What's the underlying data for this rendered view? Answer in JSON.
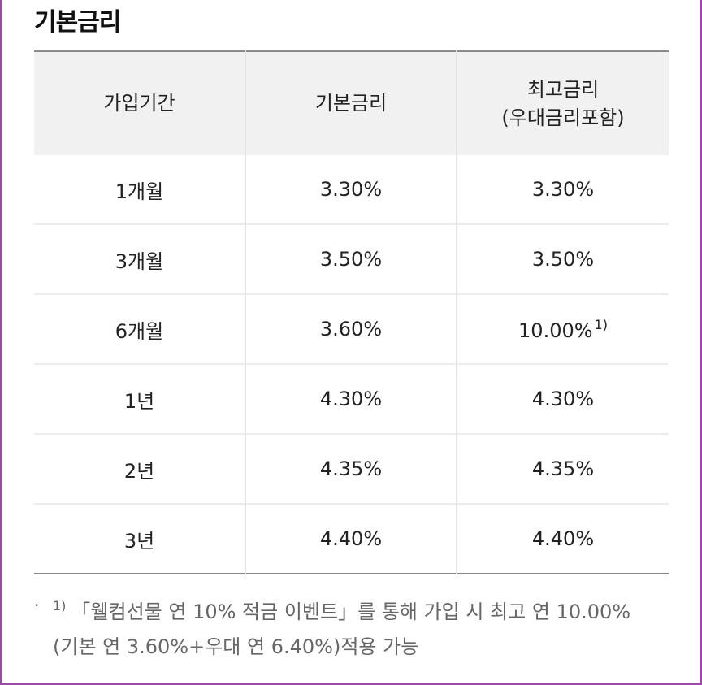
{
  "section_title": "기본금리",
  "table": {
    "headers": {
      "period": "가입기간",
      "base_rate": "기본금리",
      "max_rate_line1": "최고금리",
      "max_rate_line2": "(우대금리포함)"
    },
    "rows": [
      {
        "period": "1개월",
        "base_rate": "3.30%",
        "max_rate": "3.30%",
        "footnote": ""
      },
      {
        "period": "3개월",
        "base_rate": "3.50%",
        "max_rate": "3.50%",
        "footnote": ""
      },
      {
        "period": "6개월",
        "base_rate": "3.60%",
        "max_rate": "10.00%",
        "footnote": "1)"
      },
      {
        "period": "1년",
        "base_rate": "4.30%",
        "max_rate": "4.30%",
        "footnote": ""
      },
      {
        "period": "2년",
        "base_rate": "4.35%",
        "max_rate": "4.35%",
        "footnote": ""
      },
      {
        "period": "3년",
        "base_rate": "4.40%",
        "max_rate": "4.40%",
        "footnote": ""
      }
    ]
  },
  "note": {
    "bullet": "·",
    "marker": "1)",
    "line1": "「웰컴선물 연 10% 적금 이벤트」를 통해 가입 시 최고 연 10.00%",
    "line2": "(기본 연 3.60%+우대 연 6.40%)적용 가능"
  },
  "colors": {
    "frame_border": "#9b4aa5",
    "header_background": "#f1f1f1",
    "note_text": "#666666"
  }
}
